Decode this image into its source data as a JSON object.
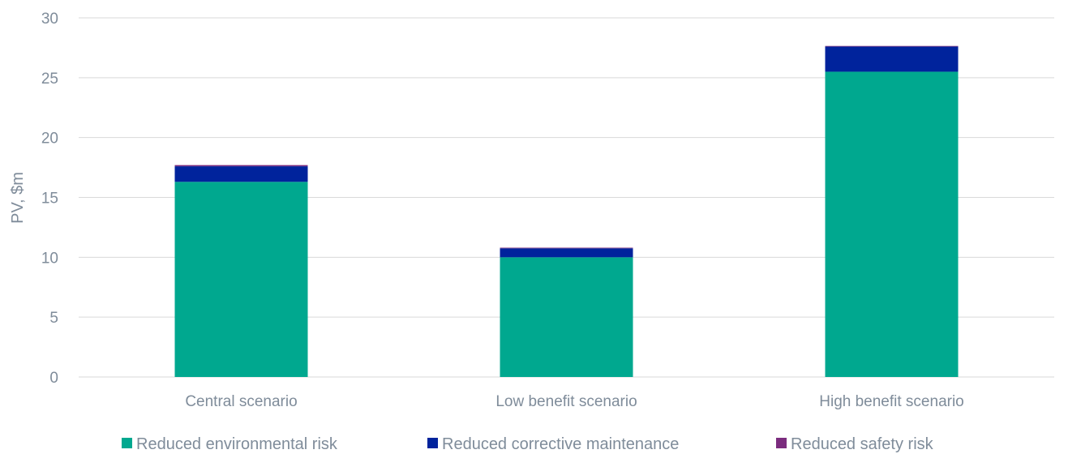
{
  "chart_data": {
    "type": "bar",
    "stacked": true,
    "categories": [
      "Central scenario",
      "Low benefit scenario",
      "High benefit scenario"
    ],
    "series": [
      {
        "name": "Reduced environmental risk",
        "values": [
          16.3,
          10.0,
          25.5
        ],
        "color": "#00a88f"
      },
      {
        "name": "Reduced corrective maintenance",
        "values": [
          1.3,
          0.75,
          2.1
        ],
        "color": "#00239c"
      },
      {
        "name": "Reduced safety risk",
        "values": [
          0.1,
          0.05,
          0.05
        ],
        "color": "#7b2c7e"
      }
    ],
    "title": "",
    "xlabel": "",
    "ylabel": "PV, $m",
    "ylim": [
      0,
      30
    ],
    "yticks": [
      0,
      5,
      10,
      15,
      20,
      25,
      30
    ],
    "grid": true,
    "legend_position": "bottom"
  }
}
